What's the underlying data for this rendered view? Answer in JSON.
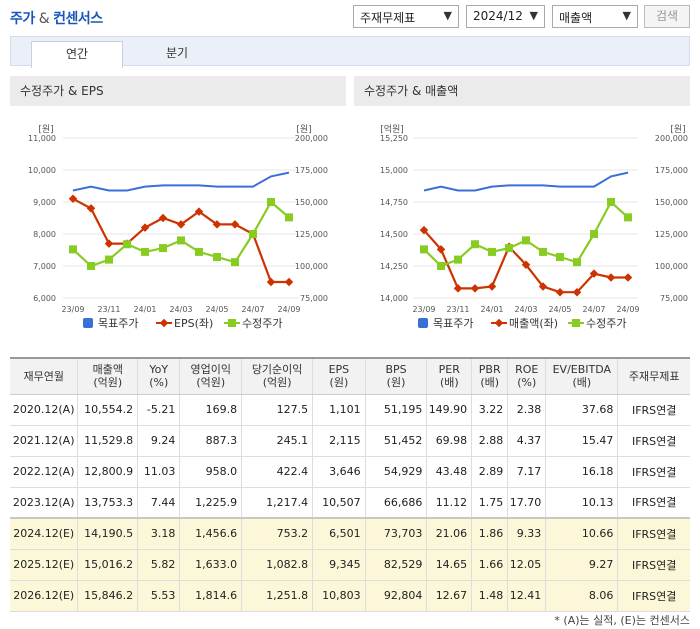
{
  "header": {
    "title_part1": "주가",
    "title_amp": " & ",
    "title_part2": "컨센서스"
  },
  "controls": {
    "type_select": "주재무제표",
    "period_select": "2024/12",
    "metric_select": "매출액",
    "search_label": "검색"
  },
  "tabs": [
    {
      "label": "연간",
      "active": true
    },
    {
      "label": "분기",
      "active": false
    }
  ],
  "colors": {
    "target": "#3a6fd8",
    "metric": "#cc3300",
    "price": "#88cc22"
  },
  "charts": {
    "left": {
      "title": "수정주가 & EPS",
      "left_unit": "[원]",
      "right_unit": "[원]",
      "left_ticks": [
        "11,000",
        "10,000",
        "9,000",
        "8,000",
        "7,000",
        "6,000"
      ],
      "right_ticks": [
        "200,000",
        "175,000",
        "150,000",
        "125,000",
        "100,000",
        "75,000"
      ],
      "legend": [
        "목표주가",
        "EPS(좌)",
        "수정주가"
      ]
    },
    "right": {
      "title": "수정주가 & 매출액",
      "left_unit": "[억원]",
      "right_unit": "[원]",
      "left_ticks": [
        "15,250",
        "15,000",
        "14,750",
        "14,500",
        "14,250",
        "14,000"
      ],
      "right_ticks": [
        "200,000",
        "175,000",
        "150,000",
        "125,000",
        "100,000",
        "75,000"
      ],
      "legend": [
        "목표주가",
        "매출액(좌)",
        "수정주가"
      ]
    }
  },
  "chart_data": [
    {
      "type": "line",
      "title": "수정주가 & EPS",
      "x_tick_labels": [
        "23/09",
        "23/11",
        "24/01",
        "24/03",
        "24/05",
        "24/07",
        "24/09"
      ],
      "x": [
        "23/09",
        "23/10",
        "23/11",
        "23/12",
        "24/01",
        "24/02",
        "24/03",
        "24/04",
        "24/05",
        "24/06",
        "24/07",
        "24/08",
        "24/09"
      ],
      "ylim_left": [
        6000,
        11000
      ],
      "ylim_right": [
        75000,
        200000
      ],
      "series": [
        {
          "name": "목표주가",
          "axis": "right",
          "values": [
            159000,
            162000,
            159000,
            159000,
            162000,
            163000,
            163000,
            163000,
            162000,
            162000,
            162000,
            170000,
            173000
          ]
        },
        {
          "name": "EPS(좌)",
          "axis": "left",
          "values": [
            9100,
            8800,
            7700,
            7700,
            8200,
            8500,
            8300,
            8700,
            8300,
            8300,
            8000,
            6500,
            6500
          ]
        },
        {
          "name": "수정주가",
          "axis": "right",
          "values": [
            113000,
            100000,
            105000,
            117000,
            111000,
            114000,
            120000,
            111000,
            107000,
            103000,
            125000,
            150000,
            138000
          ]
        }
      ]
    },
    {
      "type": "line",
      "title": "수정주가 & 매출액",
      "x_tick_labels": [
        "23/09",
        "23/11",
        "24/01",
        "24/03",
        "24/05",
        "24/07",
        "24/09"
      ],
      "x": [
        "23/09",
        "23/10",
        "23/11",
        "23/12",
        "24/01",
        "24/02",
        "24/03",
        "24/04",
        "24/05",
        "24/06",
        "24/07",
        "24/08",
        "24/09"
      ],
      "ylim_left": [
        14000,
        15250
      ],
      "ylim_right": [
        75000,
        200000
      ],
      "series": [
        {
          "name": "목표주가",
          "axis": "right",
          "values": [
            159000,
            162000,
            159000,
            159000,
            162000,
            163000,
            163000,
            163000,
            162000,
            162000,
            162000,
            170000,
            173000
          ]
        },
        {
          "name": "매출액(좌)",
          "axis": "left",
          "values": [
            14530,
            14380,
            14075,
            14075,
            14090,
            14400,
            14260,
            14090,
            14045,
            14045,
            14190,
            14160,
            14160
          ]
        },
        {
          "name": "수정주가",
          "axis": "right",
          "values": [
            113000,
            100000,
            105000,
            117000,
            111000,
            114000,
            120000,
            111000,
            107000,
            103000,
            125000,
            150000,
            138000
          ]
        }
      ]
    }
  ],
  "table": {
    "headers": [
      [
        "재무연월",
        ""
      ],
      [
        "매출액",
        "(억원)"
      ],
      [
        "YoY",
        "(%)"
      ],
      [
        "영업이익",
        "(억원)"
      ],
      [
        "당기순이익",
        "(억원)"
      ],
      [
        "EPS",
        "(원)"
      ],
      [
        "BPS",
        "(원)"
      ],
      [
        "PER",
        "(배)"
      ],
      [
        "PBR",
        "(배)"
      ],
      [
        "ROE",
        "(%)"
      ],
      [
        "EV/EBITDA",
        "(배)"
      ],
      [
        "주재무제표",
        ""
      ]
    ],
    "rows": [
      {
        "est": false,
        "cells": [
          "2020.12(A)",
          "10,554.2",
          "-5.21",
          "169.8",
          "127.5",
          "1,101",
          "51,195",
          "149.90",
          "3.22",
          "2.38",
          "37.68",
          "IFRS연결"
        ]
      },
      {
        "est": false,
        "cells": [
          "2021.12(A)",
          "11,529.8",
          "9.24",
          "887.3",
          "245.1",
          "2,115",
          "51,452",
          "69.98",
          "2.88",
          "4.37",
          "15.47",
          "IFRS연결"
        ]
      },
      {
        "est": false,
        "cells": [
          "2022.12(A)",
          "12,800.9",
          "11.03",
          "958.0",
          "422.4",
          "3,646",
          "54,929",
          "43.48",
          "2.89",
          "7.17",
          "16.18",
          "IFRS연결"
        ]
      },
      {
        "est": false,
        "cells": [
          "2023.12(A)",
          "13,753.3",
          "7.44",
          "1,225.9",
          "1,217.4",
          "10,507",
          "66,686",
          "11.12",
          "1.75",
          "17.70",
          "10.13",
          "IFRS연결"
        ]
      },
      {
        "est": true,
        "cells": [
          "2024.12(E)",
          "14,190.5",
          "3.18",
          "1,456.6",
          "753.2",
          "6,501",
          "73,703",
          "21.06",
          "1.86",
          "9.33",
          "10.66",
          "IFRS연결"
        ]
      },
      {
        "est": true,
        "cells": [
          "2025.12(E)",
          "15,016.2",
          "5.82",
          "1,633.0",
          "1,082.8",
          "9,345",
          "82,529",
          "14.65",
          "1.66",
          "12.05",
          "9.27",
          "IFRS연결"
        ]
      },
      {
        "est": true,
        "cells": [
          "2026.12(E)",
          "15,846.2",
          "5.53",
          "1,814.6",
          "1,251.8",
          "10,803",
          "92,804",
          "12.67",
          "1.48",
          "12.41",
          "8.06",
          "IFRS연결"
        ]
      }
    ]
  },
  "footnote": "* (A)는 실적, (E)는 컨센서스"
}
